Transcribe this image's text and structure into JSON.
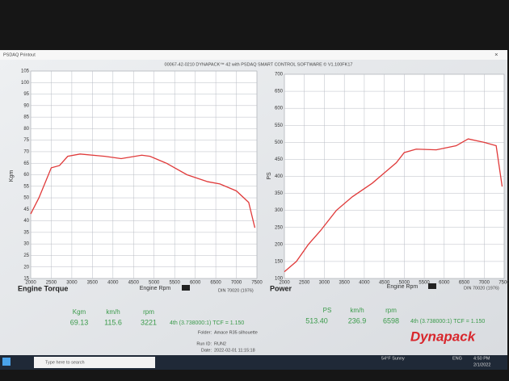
{
  "window": {
    "title": "PSDAQ Printout"
  },
  "header": "00067-42-0210 DYNAPACK™ 42 with PSDAQ SMART CONTROL SOFTWARE © V1.100FK17",
  "chart_data": [
    {
      "type": "line",
      "title": "Engine Torque",
      "x_label": "Engine Rpm",
      "y_label": "Kgm",
      "standard": "DIN 70020 (1976)",
      "color": "#e03a3a",
      "grid": true,
      "xlim": [
        2000,
        7500
      ],
      "xticks": [
        2000,
        2500,
        3000,
        3500,
        4000,
        4500,
        5000,
        5500,
        6000,
        6500,
        7000,
        7500
      ],
      "ylim": [
        15,
        105
      ],
      "yticks": [
        15,
        20,
        25,
        30,
        35,
        40,
        45,
        50,
        55,
        60,
        65,
        70,
        75,
        80,
        85,
        90,
        95,
        100,
        105
      ],
      "x": [
        2000,
        2200,
        2500,
        2700,
        2900,
        3200,
        3800,
        4200,
        4700,
        4900,
        5300,
        5800,
        6300,
        6600,
        7000,
        7300,
        7450
      ],
      "values": [
        43,
        50,
        63,
        64,
        68,
        69,
        68,
        67,
        68.5,
        68,
        65,
        60,
        57,
        56,
        53,
        48,
        37
      ]
    },
    {
      "type": "line",
      "title": "Power",
      "x_label": "Engine Rpm",
      "y_label": "PS",
      "standard": "DIN 70020 (1976)",
      "color": "#e03a3a",
      "grid": true,
      "xlim": [
        2000,
        7500
      ],
      "xticks": [
        2000,
        2500,
        3000,
        3500,
        4000,
        4500,
        5000,
        5500,
        6000,
        6500,
        7000,
        7500
      ],
      "ylim": [
        100,
        700
      ],
      "yticks": [
        100,
        150,
        200,
        250,
        300,
        350,
        400,
        450,
        500,
        550,
        600,
        650,
        700
      ],
      "x": [
        2000,
        2300,
        2600,
        2900,
        3300,
        3700,
        4200,
        4500,
        4800,
        5000,
        5300,
        5800,
        6300,
        6600,
        7000,
        7300,
        7450
      ],
      "values": [
        120,
        150,
        200,
        240,
        300,
        340,
        380,
        410,
        440,
        470,
        480,
        478,
        490,
        510,
        500,
        490,
        370
      ]
    }
  ],
  "readouts": [
    {
      "headers": [
        "Kgm",
        "km/h",
        "rpm"
      ],
      "values": [
        "69.13",
        "115.6",
        "3221"
      ],
      "gear": "4th (3.738000:1) TCF = 1.150"
    },
    {
      "headers": [
        "PS",
        "km/h",
        "rpm"
      ],
      "values": [
        "513.40",
        "236.9",
        "6598"
      ],
      "gear": "4th (3.738000:1) TCF = 1.150"
    }
  ],
  "run": {
    "folder_label": "Folder:",
    "folder": "Amace R35 silhouette",
    "run_label": "Run ID:",
    "run": "RUN2",
    "date_label": "Date:",
    "date": "2022-02-01 11:15:18"
  },
  "logo": "Dynapack",
  "taskbar": {
    "search": "Type here to search",
    "weather": "54°F Sunny",
    "lang": "ENG",
    "time": "4:50 PM",
    "date": "2/1/2022"
  }
}
